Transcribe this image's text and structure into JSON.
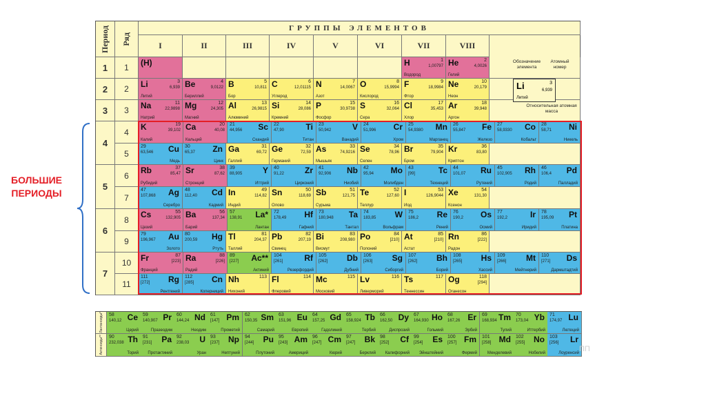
{
  "header": {
    "period_label": "Период",
    "row_label": "Ряд",
    "groups_title": "ГРУППЫ ЭЛЕМЕНТОВ",
    "groups": [
      "I",
      "II",
      "III",
      "IV",
      "V",
      "VI",
      "VII",
      "VIII"
    ]
  },
  "periods": [
    "1",
    "2",
    "3",
    "4",
    "5",
    "6",
    "7"
  ],
  "rows": [
    "1",
    "2",
    "3",
    "4",
    "5",
    "6",
    "7",
    "8",
    "9",
    "10",
    "11"
  ],
  "big_periods_label": [
    "БОЛЬШИЕ",
    "ПЕРИОДЫ"
  ],
  "legend": {
    "symbol_caption": "Обозначение элемента",
    "number_caption": "Атомный номер",
    "mass_caption": "Относительная атомная масса",
    "sample_symbol": "Li",
    "sample_number": "3",
    "sample_mass": "6,939",
    "sample_name": "Литий"
  },
  "main_rows": [
    [
      {
        "sym": "(H)",
        "num": "",
        "mass": "",
        "rus": "",
        "t": "s",
        "r": false
      },
      {
        "sym": "",
        "t": "e"
      },
      {
        "sym": "",
        "t": "e"
      },
      {
        "sym": "",
        "t": "e"
      },
      {
        "sym": "",
        "t": "e"
      },
      {
        "sym": "",
        "t": "e"
      },
      {
        "sym": "H",
        "num": "1",
        "mass": "1,00797",
        "rus": "Водород",
        "t": "s",
        "r": false
      },
      {
        "sym": "He",
        "num": "2",
        "mass": "4,0026",
        "rus": "Гелий",
        "t": "s",
        "r": false
      },
      {
        "sym": "",
        "t": "e"
      }
    ],
    [
      {
        "sym": "Li",
        "num": "3",
        "mass": "6,939",
        "rus": "Литий",
        "t": "s",
        "r": false
      },
      {
        "sym": "Be",
        "num": "4",
        "mass": "9,0122",
        "rus": "Бериллий",
        "t": "s",
        "r": false
      },
      {
        "sym": "B",
        "num": "5",
        "mass": "10,811",
        "rus": "Бор",
        "t": "p",
        "r": false
      },
      {
        "sym": "C",
        "num": "6",
        "mass": "12,01115",
        "rus": "Углерод",
        "t": "p",
        "r": false
      },
      {
        "sym": "N",
        "num": "7",
        "mass": "14,0067",
        "rus": "Азот",
        "t": "p",
        "r": false
      },
      {
        "sym": "O",
        "num": "8",
        "mass": "15,9994",
        "rus": "Кислород",
        "t": "p",
        "r": false
      },
      {
        "sym": "F",
        "num": "9",
        "mass": "18,9984",
        "rus": "Фтор",
        "t": "p",
        "r": false
      },
      {
        "sym": "Ne",
        "num": "10",
        "mass": "20,179",
        "rus": "Неон",
        "t": "p",
        "r": false
      },
      {
        "sym": "",
        "t": "e"
      }
    ],
    [
      {
        "sym": "Na",
        "num": "11",
        "mass": "22,9898",
        "rus": "Натрий",
        "t": "s",
        "r": false
      },
      {
        "sym": "Mg",
        "num": "12",
        "mass": "24,305",
        "rus": "Магний",
        "t": "s",
        "r": false
      },
      {
        "sym": "Al",
        "num": "13",
        "mass": "26,9815",
        "rus": "Алюминий",
        "t": "p",
        "r": false
      },
      {
        "sym": "Si",
        "num": "14",
        "mass": "28,086",
        "rus": "Кремний",
        "t": "p",
        "r": false
      },
      {
        "sym": "P",
        "num": "15",
        "mass": "30,9738",
        "rus": "Фосфор",
        "t": "p",
        "r": false
      },
      {
        "sym": "S",
        "num": "16",
        "mass": "32,064",
        "rus": "Сера",
        "t": "p",
        "r": false
      },
      {
        "sym": "Cl",
        "num": "17",
        "mass": "35,453",
        "rus": "Хлор",
        "t": "p",
        "r": false
      },
      {
        "sym": "Ar",
        "num": "18",
        "mass": "39,948",
        "rus": "Аргон",
        "t": "p",
        "r": false
      },
      {
        "sym": "",
        "t": "e"
      }
    ],
    [
      {
        "sym": "K",
        "num": "19",
        "mass": "39,102",
        "rus": "Калий",
        "t": "s",
        "r": false
      },
      {
        "sym": "Ca",
        "num": "20",
        "mass": "40,08",
        "rus": "Кальций",
        "t": "s",
        "r": false
      },
      {
        "sym": "Sc",
        "num": "21",
        "mass": "44,956",
        "rus": "Скандий",
        "t": "d",
        "r": true
      },
      {
        "sym": "Ti",
        "num": "22",
        "mass": "47,90",
        "rus": "Титан",
        "t": "d",
        "r": true
      },
      {
        "sym": "V",
        "num": "23",
        "mass": "50,942",
        "rus": "Ванадий",
        "t": "d",
        "r": true
      },
      {
        "sym": "Cr",
        "num": "24",
        "mass": "51,996",
        "rus": "Хром",
        "t": "d",
        "r": true
      },
      {
        "sym": "Mn",
        "num": "25",
        "mass": "54,9380",
        "rus": "Марганец",
        "t": "d",
        "r": true
      },
      {
        "sym": "Fe",
        "num": "26",
        "mass": "55,847",
        "rus": "Железо",
        "t": "d",
        "r": true
      },
      {
        "sym": "Co",
        "num": "27",
        "mass": "58,9330",
        "rus": "Кобальт",
        "t": "d",
        "r": true
      },
      {
        "sym": "Ni",
        "num": "28",
        "mass": "58,71",
        "rus": "Никель",
        "t": "d",
        "r": true
      }
    ],
    [
      {
        "sym": "Cu",
        "num": "29",
        "mass": "63,546",
        "rus": "Медь",
        "t": "d",
        "r": true
      },
      {
        "sym": "Zn",
        "num": "30",
        "mass": "65,37",
        "rus": "Цинк",
        "t": "d",
        "r": true
      },
      {
        "sym": "Ga",
        "num": "31",
        "mass": "69,72",
        "rus": "Галлий",
        "t": "p",
        "r": false
      },
      {
        "sym": "Ge",
        "num": "32",
        "mass": "72,59",
        "rus": "Германий",
        "t": "p",
        "r": false
      },
      {
        "sym": "As",
        "num": "33",
        "mass": "74,9216",
        "rus": "Мышьяк",
        "t": "p",
        "r": false
      },
      {
        "sym": "Se",
        "num": "34",
        "mass": "78,96",
        "rus": "Селен",
        "t": "p",
        "r": false
      },
      {
        "sym": "Br",
        "num": "35",
        "mass": "79,904",
        "rus": "Бром",
        "t": "p",
        "r": false
      },
      {
        "sym": "Kr",
        "num": "36",
        "mass": "83,80",
        "rus": "Криптон",
        "t": "p",
        "r": false
      },
      {
        "sym": "",
        "t": "e"
      }
    ],
    [
      {
        "sym": "Rb",
        "num": "37",
        "mass": "85,47",
        "rus": "Рубидий",
        "t": "s",
        "r": false
      },
      {
        "sym": "Sr",
        "num": "38",
        "mass": "87,62",
        "rus": "Стронций",
        "t": "s",
        "r": false
      },
      {
        "sym": "Y",
        "num": "39",
        "mass": "88,905",
        "rus": "Иттрий",
        "t": "d",
        "r": true
      },
      {
        "sym": "Zr",
        "num": "40",
        "mass": "91,22",
        "rus": "Цирконий",
        "t": "d",
        "r": true
      },
      {
        "sym": "Nb",
        "num": "41",
        "mass": "92,906",
        "rus": "Ниобий",
        "t": "d",
        "r": true
      },
      {
        "sym": "Mo",
        "num": "42",
        "mass": "95,94",
        "rus": "Молибден",
        "t": "d",
        "r": true
      },
      {
        "sym": "Tc",
        "num": "43",
        "mass": "[99]",
        "rus": "Технеций",
        "t": "d",
        "r": true
      },
      {
        "sym": "Ru",
        "num": "44",
        "mass": "101,07",
        "rus": "Рутений",
        "t": "d",
        "r": true
      },
      {
        "sym": "Rh",
        "num": "45",
        "mass": "102,905",
        "rus": "Родий",
        "t": "d",
        "r": true
      },
      {
        "sym": "Pd",
        "num": "46",
        "mass": "106,4",
        "rus": "Палладий",
        "t": "d",
        "r": true
      }
    ],
    [
      {
        "sym": "Ag",
        "num": "47",
        "mass": "107,868",
        "rus": "Серебро",
        "t": "d",
        "r": true
      },
      {
        "sym": "Cd",
        "num": "48",
        "mass": "112,40",
        "rus": "Кадмий",
        "t": "d",
        "r": true
      },
      {
        "sym": "In",
        "num": "49",
        "mass": "114,82",
        "rus": "Индий",
        "t": "p",
        "r": false
      },
      {
        "sym": "Sn",
        "num": "50",
        "mass": "118,69",
        "rus": "Олово",
        "t": "p",
        "r": false
      },
      {
        "sym": "Sb",
        "num": "51",
        "mass": "121,75",
        "rus": "Сурьма",
        "t": "p",
        "r": false
      },
      {
        "sym": "Te",
        "num": "52",
        "mass": "127,60",
        "rus": "Теллур",
        "t": "p",
        "r": false
      },
      {
        "sym": "I",
        "num": "53",
        "mass": "126,9044",
        "rus": "Иод",
        "t": "p",
        "r": false
      },
      {
        "sym": "Xe",
        "num": "54",
        "mass": "131,30",
        "rus": "Ксенон",
        "t": "p",
        "r": false
      },
      {
        "sym": "",
        "t": "e"
      }
    ],
    [
      {
        "sym": "Cs",
        "num": "55",
        "mass": "132,905",
        "rus": "Цезий",
        "t": "s",
        "r": false
      },
      {
        "sym": "Ba",
        "num": "56",
        "mass": "137,34",
        "rus": "Барий",
        "t": "s",
        "r": false
      },
      {
        "sym": "La*",
        "num": "57",
        "mass": "138,91",
        "rus": "Лантан",
        "t": "f",
        "r": true
      },
      {
        "sym": "Hf",
        "num": "72",
        "mass": "178,49",
        "rus": "Гафний",
        "t": "d",
        "r": true
      },
      {
        "sym": "Ta",
        "num": "73",
        "mass": "180,948",
        "rus": "Тантал",
        "t": "d",
        "r": true
      },
      {
        "sym": "W",
        "num": "74",
        "mass": "183,85",
        "rus": "Вольфрам",
        "t": "d",
        "r": true
      },
      {
        "sym": "Re",
        "num": "75",
        "mass": "186,2",
        "rus": "Рений",
        "t": "d",
        "r": true
      },
      {
        "sym": "Os",
        "num": "76",
        "mass": "190,2",
        "rus": "Осмий",
        "t": "d",
        "r": true
      },
      {
        "sym": "Ir",
        "num": "77",
        "mass": "192,2",
        "rus": "Иридий",
        "t": "d",
        "r": true
      },
      {
        "sym": "Pt",
        "num": "78",
        "mass": "195,09",
        "rus": "Платина",
        "t": "d",
        "r": true
      }
    ],
    [
      {
        "sym": "Au",
        "num": "79",
        "mass": "196,967",
        "rus": "Золото",
        "t": "d",
        "r": true
      },
      {
        "sym": "Hg",
        "num": "80",
        "mass": "200,59",
        "rus": "Ртуть",
        "t": "d",
        "r": true
      },
      {
        "sym": "Tl",
        "num": "81",
        "mass": "204,37",
        "rus": "Таллий",
        "t": "p",
        "r": false
      },
      {
        "sym": "Pb",
        "num": "82",
        "mass": "207,19",
        "rus": "Свинец",
        "t": "p",
        "r": false
      },
      {
        "sym": "Bi",
        "num": "83",
        "mass": "208,980",
        "rus": "Висмут",
        "t": "p",
        "r": false
      },
      {
        "sym": "Po",
        "num": "84",
        "mass": "[210]",
        "rus": "Полоний",
        "t": "p",
        "r": false
      },
      {
        "sym": "At",
        "num": "85",
        "mass": "[210]",
        "rus": "Астат",
        "t": "p",
        "r": false
      },
      {
        "sym": "Rn",
        "num": "86",
        "mass": "[222]",
        "rus": "Радон",
        "t": "p",
        "r": false
      },
      {
        "sym": "",
        "t": "e"
      }
    ],
    [
      {
        "sym": "Fr",
        "num": "87",
        "mass": "[223]",
        "rus": "Франций",
        "t": "s",
        "r": false
      },
      {
        "sym": "Ra",
        "num": "88",
        "mass": "[226]",
        "rus": "Радий",
        "t": "s",
        "r": false
      },
      {
        "sym": "Ac**",
        "num": "89",
        "mass": "[227]",
        "rus": "Актиний",
        "t": "f",
        "r": true
      },
      {
        "sym": "Rf",
        "num": "104",
        "mass": "[261]",
        "rus": "Резерфордий",
        "t": "d",
        "r": true
      },
      {
        "sym": "Db",
        "num": "105",
        "mass": "[262]",
        "rus": "Дубний",
        "t": "d",
        "r": true
      },
      {
        "sym": "Sg",
        "num": "106",
        "mass": "[263]",
        "rus": "Сиборгий",
        "t": "d",
        "r": true
      },
      {
        "sym": "Bh",
        "num": "107",
        "mass": "[262]",
        "rus": "Борий",
        "t": "d",
        "r": true
      },
      {
        "sym": "Hs",
        "num": "108",
        "mass": "[265]",
        "rus": "Хассий",
        "t": "d",
        "r": true
      },
      {
        "sym": "Mt",
        "num": "109",
        "mass": "[266]",
        "rus": "Мейтнерий",
        "t": "d",
        "r": true
      },
      {
        "sym": "Ds",
        "num": "110",
        "mass": "[271]",
        "rus": "Дармштадтий",
        "t": "d",
        "r": true
      }
    ],
    [
      {
        "sym": "Rg",
        "num": "111",
        "mass": "[272]",
        "rus": "Рентгений",
        "t": "d",
        "r": true
      },
      {
        "sym": "Cn",
        "num": "112",
        "mass": "[285]",
        "rus": "Коперниций",
        "t": "d",
        "r": true
      },
      {
        "sym": "Nh",
        "num": "113",
        "mass": "",
        "rus": "Нихоний",
        "t": "p",
        "r": false
      },
      {
        "sym": "Fl",
        "num": "114",
        "mass": "",
        "rus": "Флеровий",
        "t": "p",
        "r": false
      },
      {
        "sym": "Mc",
        "num": "115",
        "mass": "",
        "rus": "Московий",
        "t": "p",
        "r": false
      },
      {
        "sym": "Lv",
        "num": "116",
        "mass": "",
        "rus": "Ливерморий",
        "t": "p",
        "r": false
      },
      {
        "sym": "Ts",
        "num": "117",
        "mass": "",
        "rus": "Теннессин",
        "t": "p",
        "r": false
      },
      {
        "sym": "Og",
        "num": "118",
        "mass": "[294]",
        "rus": "Оганесон",
        "t": "p",
        "r": false
      },
      {
        "sym": "",
        "t": "e"
      }
    ]
  ],
  "lanthanides_label": "Лантаноиды*",
  "actinides_label": "Актиноиды**",
  "lanthanides": [
    {
      "sym": "Ce",
      "num": "58",
      "mass": "140,12",
      "rus": "Церий",
      "t": "f"
    },
    {
      "sym": "Pr",
      "num": "59",
      "mass": "140,907",
      "rus": "Празеодим",
      "t": "f"
    },
    {
      "sym": "Nd",
      "num": "60",
      "mass": "144,24",
      "rus": "Неодим",
      "t": "f"
    },
    {
      "sym": "Pm",
      "num": "61",
      "mass": "[147]",
      "rus": "Прометий",
      "t": "f"
    },
    {
      "sym": "Sm",
      "num": "62",
      "mass": "150,35",
      "rus": "Самарий",
      "t": "f"
    },
    {
      "sym": "Eu",
      "num": "63",
      "mass": "151,96",
      "rus": "Европий",
      "t": "f"
    },
    {
      "sym": "Gd",
      "num": "64",
      "mass": "157,25",
      "rus": "Гадолиний",
      "t": "f"
    },
    {
      "sym": "Tb",
      "num": "65",
      "mass": "158,924",
      "rus": "Тербий",
      "t": "f"
    },
    {
      "sym": "Dy",
      "num": "66",
      "mass": "162,50",
      "rus": "Диспрозий",
      "t": "f"
    },
    {
      "sym": "Ho",
      "num": "67",
      "mass": "164,930",
      "rus": "Гольмий",
      "t": "f"
    },
    {
      "sym": "Er",
      "num": "68",
      "mass": "167,26",
      "rus": "Эрбий",
      "t": "f"
    },
    {
      "sym": "Tm",
      "num": "69",
      "mass": "168,934",
      "rus": "Тулий",
      "t": "f"
    },
    {
      "sym": "Yb",
      "num": "70",
      "mass": "173,04",
      "rus": "Иттербий",
      "t": "f"
    },
    {
      "sym": "Lu",
      "num": "71",
      "mass": "174,97",
      "rus": "Лютеций",
      "t": "d"
    }
  ],
  "actinides": [
    {
      "sym": "Th",
      "num": "90",
      "mass": "232,038",
      "rus": "Торий",
      "t": "f"
    },
    {
      "sym": "Pa",
      "num": "91",
      "mass": "[231]",
      "rus": "Протактиний",
      "t": "f"
    },
    {
      "sym": "U",
      "num": "92",
      "mass": "238,03",
      "rus": "Уран",
      "t": "f"
    },
    {
      "sym": "Np",
      "num": "93",
      "mass": "[237]",
      "rus": "Нептуний",
      "t": "f"
    },
    {
      "sym": "Pu",
      "num": "94",
      "mass": "[244]",
      "rus": "Плутоний",
      "t": "f"
    },
    {
      "sym": "Am",
      "num": "95",
      "mass": "[243]",
      "rus": "Америций",
      "t": "f"
    },
    {
      "sym": "Cm",
      "num": "96",
      "mass": "[247]",
      "rus": "Кюрий",
      "t": "f"
    },
    {
      "sym": "Bk",
      "num": "97",
      "mass": "[247]",
      "rus": "Берклий",
      "t": "f"
    },
    {
      "sym": "Cf",
      "num": "98",
      "mass": "[252]",
      "rus": "Калифорний",
      "t": "f"
    },
    {
      "sym": "Es",
      "num": "99",
      "mass": "[254]",
      "rus": "Эйнштейний",
      "t": "f"
    },
    {
      "sym": "Fm",
      "num": "100",
      "mass": "[257]",
      "rus": "Фермий",
      "t": "f"
    },
    {
      "sym": "Md",
      "num": "101",
      "mass": "[258]",
      "rus": "Менделевий",
      "t": "f"
    },
    {
      "sym": "No",
      "num": "102",
      "mass": "[255]",
      "rus": "Нобелий",
      "t": "f"
    },
    {
      "sym": "Lr",
      "num": "103",
      "mass": "[256]",
      "rus": "Лоуренсий",
      "t": "d"
    }
  ],
  "colors": {
    "s": "#e2719a",
    "p": "#fcf07a",
    "d": "#4fb8e6",
    "f": "#8bcd4f",
    "accent": "#e41e26",
    "brace": "#2f6fc6"
  }
}
